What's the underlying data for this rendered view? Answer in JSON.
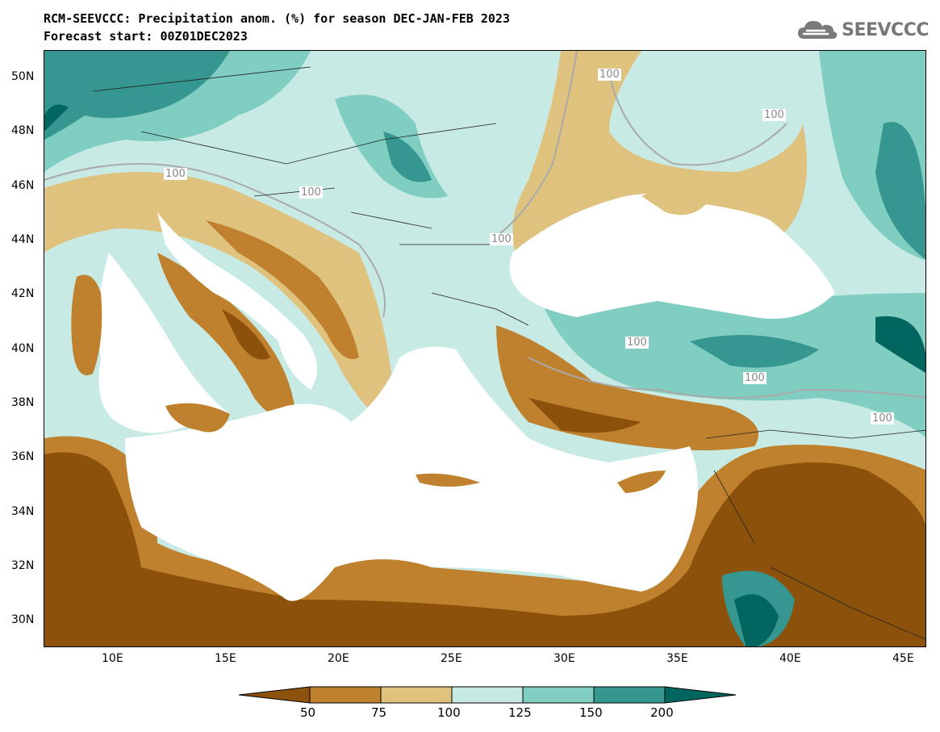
{
  "header": {
    "title_line1": "RCM-SEEVCCC: Precipitation anom. (%) for season DEC-JAN-FEB 2023",
    "title_line2": "Forecast start: 00Z01DEC2023",
    "logo_text": "SEEVCCC"
  },
  "map": {
    "lat_ticks": [
      "50N",
      "48N",
      "46N",
      "44N",
      "42N",
      "40N",
      "38N",
      "36N",
      "34N",
      "32N",
      "30N"
    ],
    "lon_ticks": [
      "10E",
      "15E",
      "20E",
      "25E",
      "30E",
      "35E",
      "40E",
      "45E"
    ],
    "contour_labels": [
      "100",
      "100",
      "100",
      "100",
      "100",
      "100",
      "100",
      "100"
    ],
    "colors": {
      "land_dry_strong": "#8c510a",
      "land_dry": "#bf812d",
      "land_dry_light": "#dfc27d",
      "land_wet_light": "#c7eae5",
      "land_wet": "#80cdc1",
      "land_wet_strong": "#35978f",
      "land_wet_max": "#01665e",
      "sea": "#ffffff"
    }
  },
  "colorbar": {
    "labels": [
      "50",
      "75",
      "100",
      "125",
      "150",
      "200"
    ],
    "colors": [
      "#8c510a",
      "#bf812d",
      "#dfc27d",
      "#c7eae5",
      "#80cdc1",
      "#35978f",
      "#01665e"
    ]
  }
}
